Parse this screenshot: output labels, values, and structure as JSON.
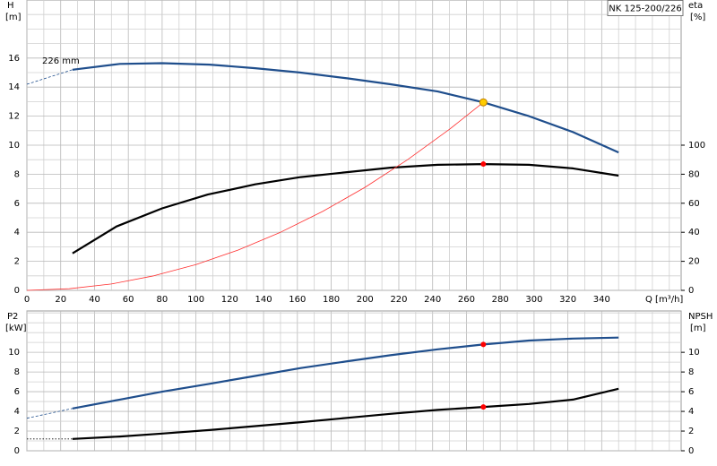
{
  "chart_data": [
    {
      "type": "line",
      "title": "NK 125-200/226",
      "ylabel": "H",
      "yunit": "[m]",
      "y2label": "eta",
      "y2unit": "[%]",
      "xlabel": "Q [m³/h]",
      "annotation": "226 mm",
      "xlim": [
        0,
        387
      ],
      "xticks": [
        0,
        20,
        40,
        60,
        80,
        100,
        120,
        140,
        160,
        180,
        200,
        220,
        240,
        260,
        280,
        300,
        320,
        340
      ],
      "ylim": [
        0,
        20
      ],
      "yticks": [
        0,
        2,
        4,
        6,
        8,
        10,
        12,
        14,
        16
      ],
      "y2lim": [
        0,
        200
      ],
      "y2ticks": [
        0,
        20,
        40,
        60,
        80,
        100
      ],
      "grid": true,
      "series": [
        {
          "color": "#1f4e8c",
          "style": "solid",
          "x": [
            27,
            55,
            80,
            108,
            135,
            162,
            190,
            215,
            243,
            270,
            297,
            323,
            350
          ],
          "values": [
            15.2,
            15.6,
            15.65,
            15.55,
            15.3,
            15.0,
            14.6,
            14.2,
            13.7,
            12.95,
            12.0,
            10.9,
            9.5
          ]
        },
        {
          "color": "#1f4e8c",
          "style": "dashed",
          "x": [
            0,
            27
          ],
          "values": [
            14.2,
            15.2
          ]
        },
        {
          "color": "#000000",
          "style": "solid",
          "axis": "y2",
          "x": [
            27,
            53,
            80,
            107,
            135,
            162,
            190,
            215,
            243,
            270,
            297,
            323,
            350
          ],
          "values": [
            25.5,
            44,
            56.5,
            66,
            73,
            78,
            81.5,
            84.5,
            86.5,
            87,
            86.5,
            84,
            79
          ]
        },
        {
          "color": "#ff3030",
          "style": "thin",
          "x": [
            0,
            25,
            50,
            75,
            100,
            125,
            150,
            175,
            200,
            225,
            250,
            270
          ],
          "values": [
            0,
            0.11,
            0.44,
            1.0,
            1.78,
            2.78,
            4.0,
            5.44,
            7.1,
            8.99,
            11.1,
            12.95
          ]
        }
      ],
      "points": [
        {
          "x": 270,
          "y": 12.95,
          "color": "#ffcc00"
        },
        {
          "x": 270,
          "y": 87,
          "color": "#ff0000",
          "axis": "y2"
        }
      ]
    },
    {
      "type": "line",
      "ylabel": "P2",
      "yunit": "[kW]",
      "y2label": "NPSH",
      "y2unit": "[m]",
      "xlim": [
        0,
        387
      ],
      "ylim": [
        0,
        14.2
      ],
      "yticks": [
        0,
        2,
        4,
        6,
        8,
        10
      ],
      "y2lim": [
        0,
        14.2
      ],
      "y2ticks": [
        0,
        2,
        4,
        6,
        8,
        10
      ],
      "grid": true,
      "series": [
        {
          "color": "#1f4e8c",
          "style": "solid",
          "x": [
            27,
            55,
            80,
            108,
            135,
            162,
            190,
            215,
            243,
            270,
            297,
            323,
            350
          ],
          "values": [
            4.3,
            5.2,
            6.0,
            6.8,
            7.6,
            8.4,
            9.1,
            9.7,
            10.3,
            10.8,
            11.2,
            11.4,
            11.5
          ]
        },
        {
          "color": "#1f4e8c",
          "style": "dashed",
          "x": [
            0,
            27
          ],
          "values": [
            3.3,
            4.3
          ]
        },
        {
          "color": "#000000",
          "style": "solid",
          "axis": "y2",
          "x": [
            27,
            55,
            80,
            108,
            135,
            162,
            190,
            215,
            243,
            270,
            297,
            323,
            350
          ],
          "values": [
            1.2,
            1.45,
            1.75,
            2.1,
            2.5,
            2.9,
            3.35,
            3.75,
            4.15,
            4.45,
            4.75,
            5.2,
            6.3
          ]
        },
        {
          "color": "#000000",
          "style": "dotted",
          "axis": "y2",
          "x": [
            0,
            27
          ],
          "values": [
            1.2,
            1.2
          ]
        }
      ],
      "points": [
        {
          "x": 270,
          "y": 10.8,
          "color": "#ff0000"
        },
        {
          "x": 270,
          "y": 4.45,
          "color": "#ff0000",
          "axis": "y2"
        }
      ]
    }
  ]
}
